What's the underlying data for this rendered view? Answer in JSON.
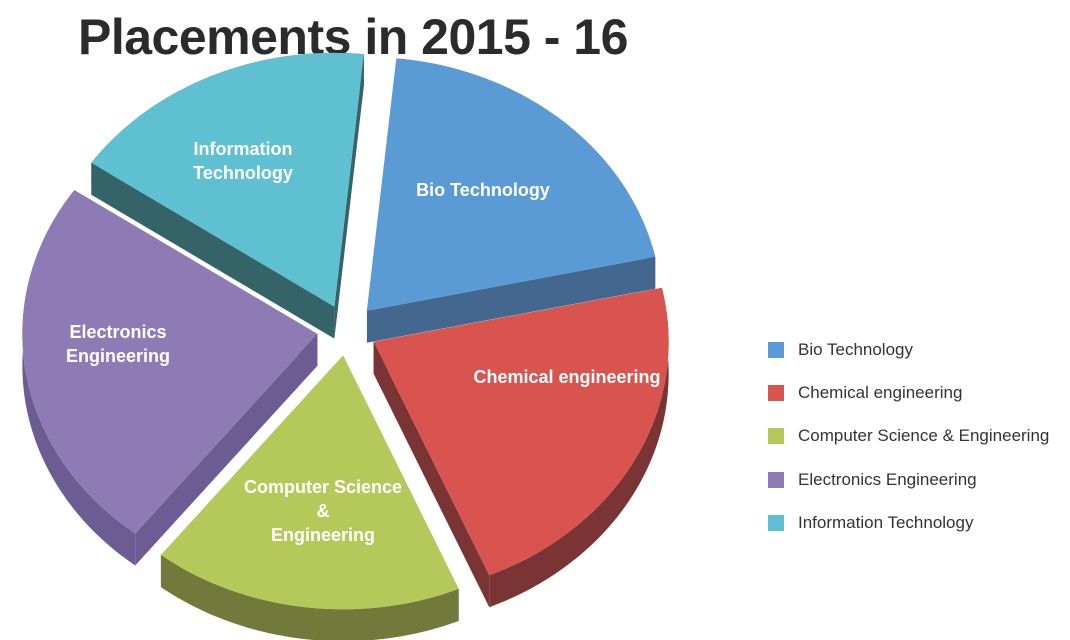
{
  "chart_data": {
    "type": "pie",
    "title": "Placements in 2015 - 16",
    "categories": [
      "Bio Technology",
      "Chemical engineering",
      "Computer Science & Engineering",
      "Electronics Engineering",
      "Information Technology"
    ],
    "values": [
      20,
      22,
      17,
      24,
      17
    ],
    "slice_labels": [
      [
        "Bio  Technology"
      ],
      [
        "Chemical  engineering"
      ],
      [
        "Computer  Science",
        "&",
        "Engineering"
      ],
      [
        "Electronics",
        "Engineering"
      ],
      [
        "Information",
        "Technology"
      ]
    ],
    "colors": [
      "#5b9bd5",
      "#d9534f",
      "#b5c95a",
      "#8e7bb5",
      "#5fc0d2"
    ],
    "side_colors": [
      "#44678f",
      "#7a3434",
      "#717a3a",
      "#6d5c94",
      "#356468"
    ],
    "legend_position": "right",
    "style": "3d-exploded"
  }
}
